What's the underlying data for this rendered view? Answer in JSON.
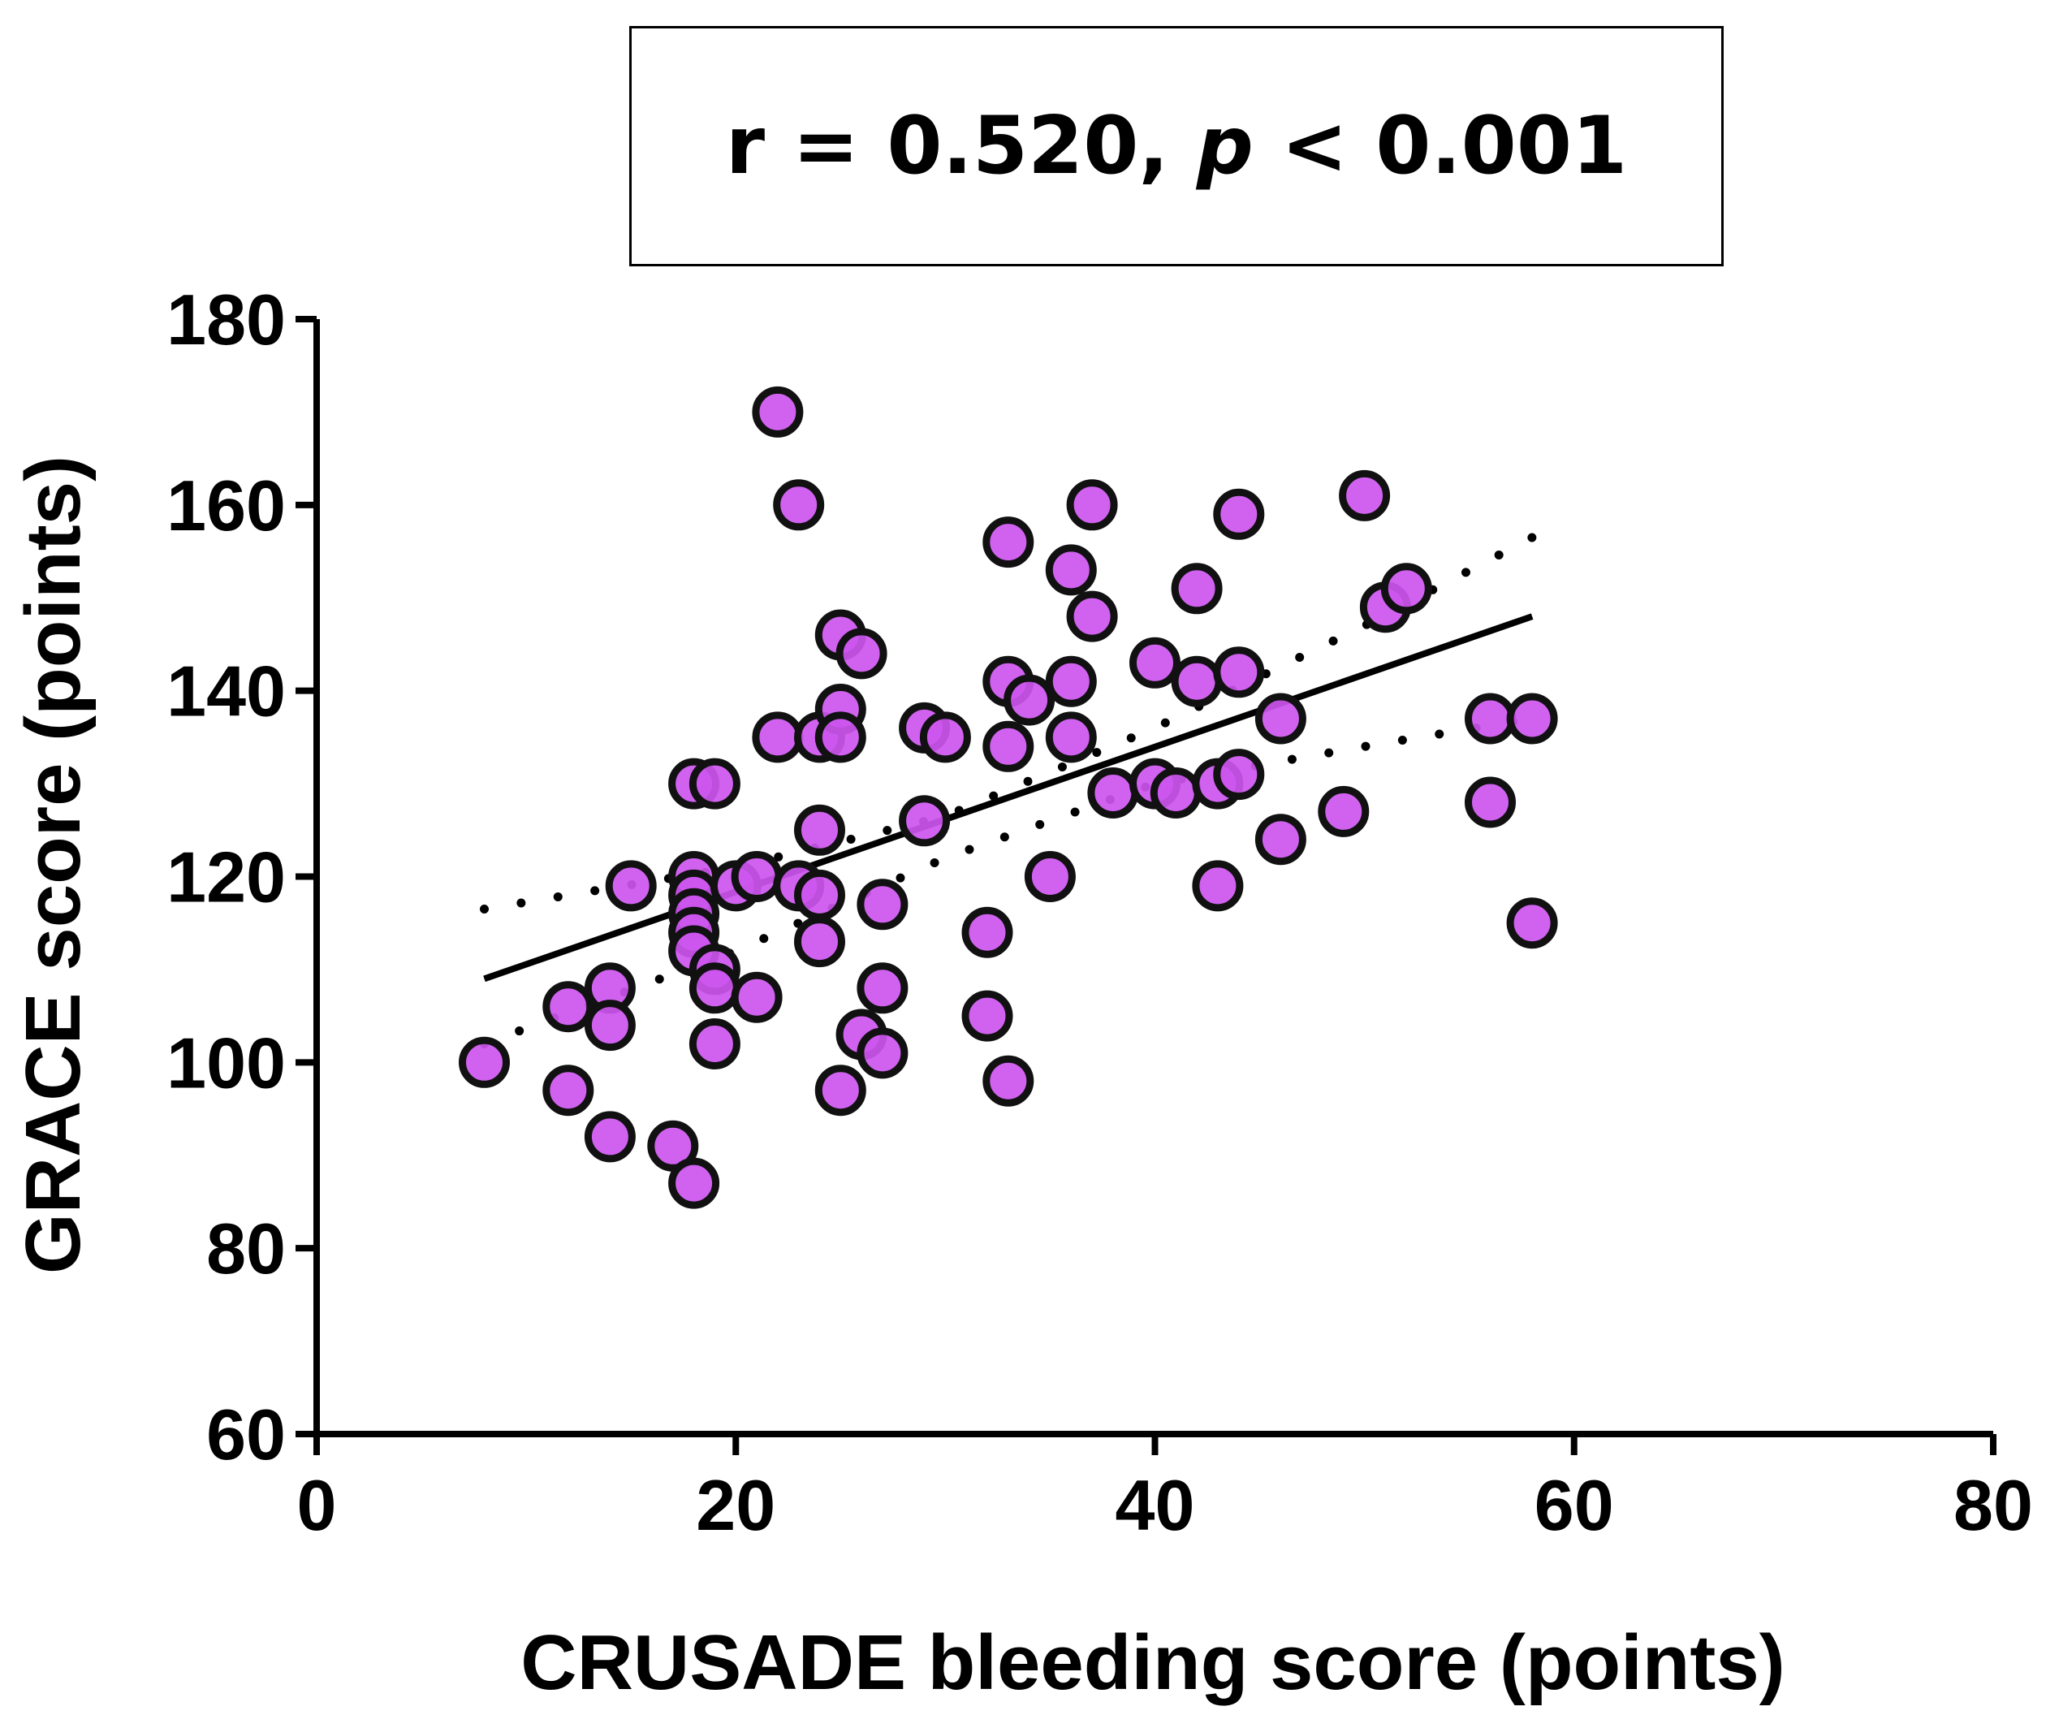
{
  "annotation": {
    "stat_prefix": "r = 0.520, ",
    "p_symbol": "p",
    "stat_suffix": " < 0.001"
  },
  "chart_data": {
    "type": "scatter",
    "title": "",
    "xlabel": "CRUSADE bleeding score (points)",
    "ylabel": "GRACE score (points)",
    "xlim": [
      0,
      80
    ],
    "ylim": [
      60,
      180
    ],
    "xticks": [
      0,
      20,
      40,
      60,
      80
    ],
    "yticks": [
      60,
      80,
      100,
      120,
      140,
      160,
      180
    ],
    "grid": false,
    "legend": "none",
    "marker_color": "#cc55ee",
    "marker_edge_color": "#111111",
    "points": [
      [
        8,
        100
      ],
      [
        12,
        106
      ],
      [
        12,
        97
      ],
      [
        14,
        108
      ],
      [
        14,
        104
      ],
      [
        14,
        92
      ],
      [
        15,
        119
      ],
      [
        17,
        91
      ],
      [
        18,
        87
      ],
      [
        18,
        130
      ],
      [
        18,
        120
      ],
      [
        18,
        118
      ],
      [
        18,
        116
      ],
      [
        18,
        114
      ],
      [
        18,
        112
      ],
      [
        19,
        130
      ],
      [
        19,
        110
      ],
      [
        19,
        108
      ],
      [
        19,
        102
      ],
      [
        20,
        119
      ],
      [
        21,
        120
      ],
      [
        21,
        107
      ],
      [
        22,
        170
      ],
      [
        22,
        135
      ],
      [
        23,
        160
      ],
      [
        23,
        119
      ],
      [
        24,
        135
      ],
      [
        24,
        125
      ],
      [
        24,
        118
      ],
      [
        24,
        113
      ],
      [
        25,
        146
      ],
      [
        25,
        138
      ],
      [
        25,
        135
      ],
      [
        25,
        97
      ],
      [
        26,
        144
      ],
      [
        26,
        103
      ],
      [
        27,
        117
      ],
      [
        27,
        108
      ],
      [
        27,
        101
      ],
      [
        29,
        136
      ],
      [
        29,
        126
      ],
      [
        30,
        135
      ],
      [
        32,
        114
      ],
      [
        32,
        105
      ],
      [
        33,
        156
      ],
      [
        33,
        141
      ],
      [
        33,
        134
      ],
      [
        33,
        98
      ],
      [
        34,
        139
      ],
      [
        35,
        120
      ],
      [
        36,
        153
      ],
      [
        36,
        141
      ],
      [
        36,
        135
      ],
      [
        37,
        160
      ],
      [
        37,
        148
      ],
      [
        38,
        129
      ],
      [
        40,
        143
      ],
      [
        40,
        130
      ],
      [
        41,
        129
      ],
      [
        42,
        151
      ],
      [
        42,
        141
      ],
      [
        43,
        130
      ],
      [
        43,
        119
      ],
      [
        44,
        159
      ],
      [
        44,
        142
      ],
      [
        44,
        131
      ],
      [
        46,
        137
      ],
      [
        46,
        124
      ],
      [
        49,
        127
      ],
      [
        50,
        161
      ],
      [
        51,
        149
      ],
      [
        52,
        151
      ],
      [
        56,
        137
      ],
      [
        56,
        128
      ],
      [
        58,
        137
      ],
      [
        58,
        115
      ]
    ],
    "regression_line": {
      "x": [
        8,
        58
      ],
      "y": [
        109,
        148
      ]
    },
    "confidence_band_upper": {
      "x": [
        8,
        20,
        30,
        40,
        50,
        58
      ],
      "y": [
        116.5,
        121,
        126.5,
        136,
        147,
        156.5
      ]
    },
    "confidence_band_lower": {
      "x": [
        8,
        20,
        30,
        40,
        50,
        58
      ],
      "y": [
        102,
        112,
        122,
        130,
        134,
        137
      ]
    }
  }
}
